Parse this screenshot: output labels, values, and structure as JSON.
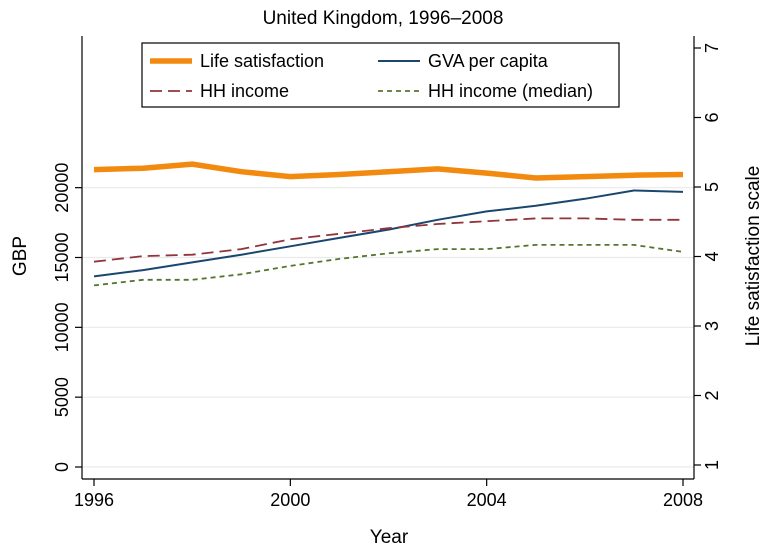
{
  "chart_data": {
    "type": "line",
    "title": "United Kingdom, 1996–2008",
    "xlabel": "Year",
    "ylabel": "GBP",
    "y2label": "Life satisfaction scale",
    "xlim": [
      1996,
      2008
    ],
    "ylim": [
      0,
      30000
    ],
    "y2lim": [
      1,
      7
    ],
    "x_ticks": [
      1996,
      2000,
      2004,
      2008
    ],
    "y_ticks": [
      0,
      5000,
      10000,
      15000,
      20000
    ],
    "y2_ticks": [
      1,
      2,
      3,
      4,
      5,
      6,
      7
    ],
    "grid": true,
    "legend_position": "top-center",
    "series": [
      {
        "name": "Life satisfaction",
        "axis": "right",
        "color": "#F28A0F",
        "style": "thick",
        "x": [
          1996,
          1997,
          1998,
          1999,
          2000,
          2001,
          2002,
          2003,
          2004,
          2005,
          2006,
          2007,
          2008
        ],
        "values": [
          5.25,
          5.27,
          5.33,
          5.22,
          5.15,
          5.18,
          5.22,
          5.26,
          5.2,
          5.13,
          5.15,
          5.17,
          5.18
        ]
      },
      {
        "name": "GVA per capita",
        "axis": "left",
        "color": "#1A476F",
        "style": "solid",
        "x": [
          1996,
          1997,
          1998,
          1999,
          2000,
          2001,
          2002,
          2003,
          2004,
          2005,
          2006,
          2007,
          2008
        ],
        "values": [
          13650,
          14100,
          14650,
          15200,
          15800,
          16400,
          17000,
          17700,
          18300,
          18700,
          19200,
          19800,
          19700
        ]
      },
      {
        "name": "HH income",
        "axis": "left",
        "color": "#90353B",
        "style": "dashed",
        "x": [
          1996,
          1997,
          1998,
          1999,
          2000,
          2001,
          2002,
          2003,
          2004,
          2005,
          2006,
          2007,
          2008
        ],
        "values": [
          14700,
          15100,
          15200,
          15600,
          16300,
          16700,
          17100,
          17400,
          17600,
          17800,
          17800,
          17700,
          17700
        ]
      },
      {
        "name": "HH income (median)",
        "axis": "left",
        "color": "#55752F",
        "style": "dotted",
        "x": [
          1996,
          1997,
          1998,
          1999,
          2000,
          2001,
          2002,
          2003,
          2004,
          2005,
          2006,
          2007,
          2008
        ],
        "values": [
          13000,
          13400,
          13400,
          13800,
          14400,
          14900,
          15300,
          15600,
          15600,
          15900,
          15900,
          15900,
          15400
        ]
      }
    ]
  }
}
